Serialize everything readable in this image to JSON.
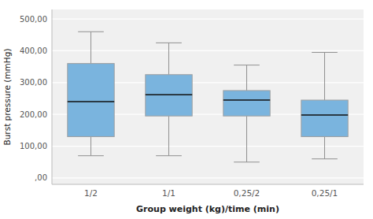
{
  "chart_data": {
    "type": "box",
    "xlabel": "Group weight (kg)/time (min)",
    "ylabel": "Burst pressure (mmHg)",
    "categories": [
      "1/2",
      "1/1",
      "0,25/2",
      "0,25/1"
    ],
    "values": [
      {
        "min": 70,
        "q1": 130,
        "median": 240,
        "q3": 360,
        "max": 460
      },
      {
        "min": 70,
        "q1": 195,
        "median": 262,
        "q3": 325,
        "max": 425
      },
      {
        "min": 50,
        "q1": 195,
        "median": 245,
        "q3": 275,
        "max": 355
      },
      {
        "min": 60,
        "q1": 130,
        "median": 198,
        "q3": 245,
        "max": 395
      }
    ],
    "color": "#7ab4de",
    "ylim": [
      -20,
      530
    ],
    "yticks": [
      {
        "value": 0,
        "label": ",00"
      },
      {
        "value": 100,
        "label": "100,00"
      },
      {
        "value": 200,
        "label": "200,00"
      },
      {
        "value": 300,
        "label": "300,00"
      },
      {
        "value": 400,
        "label": "400,00"
      },
      {
        "value": 500,
        "label": "500,00"
      }
    ],
    "grid": true
  }
}
